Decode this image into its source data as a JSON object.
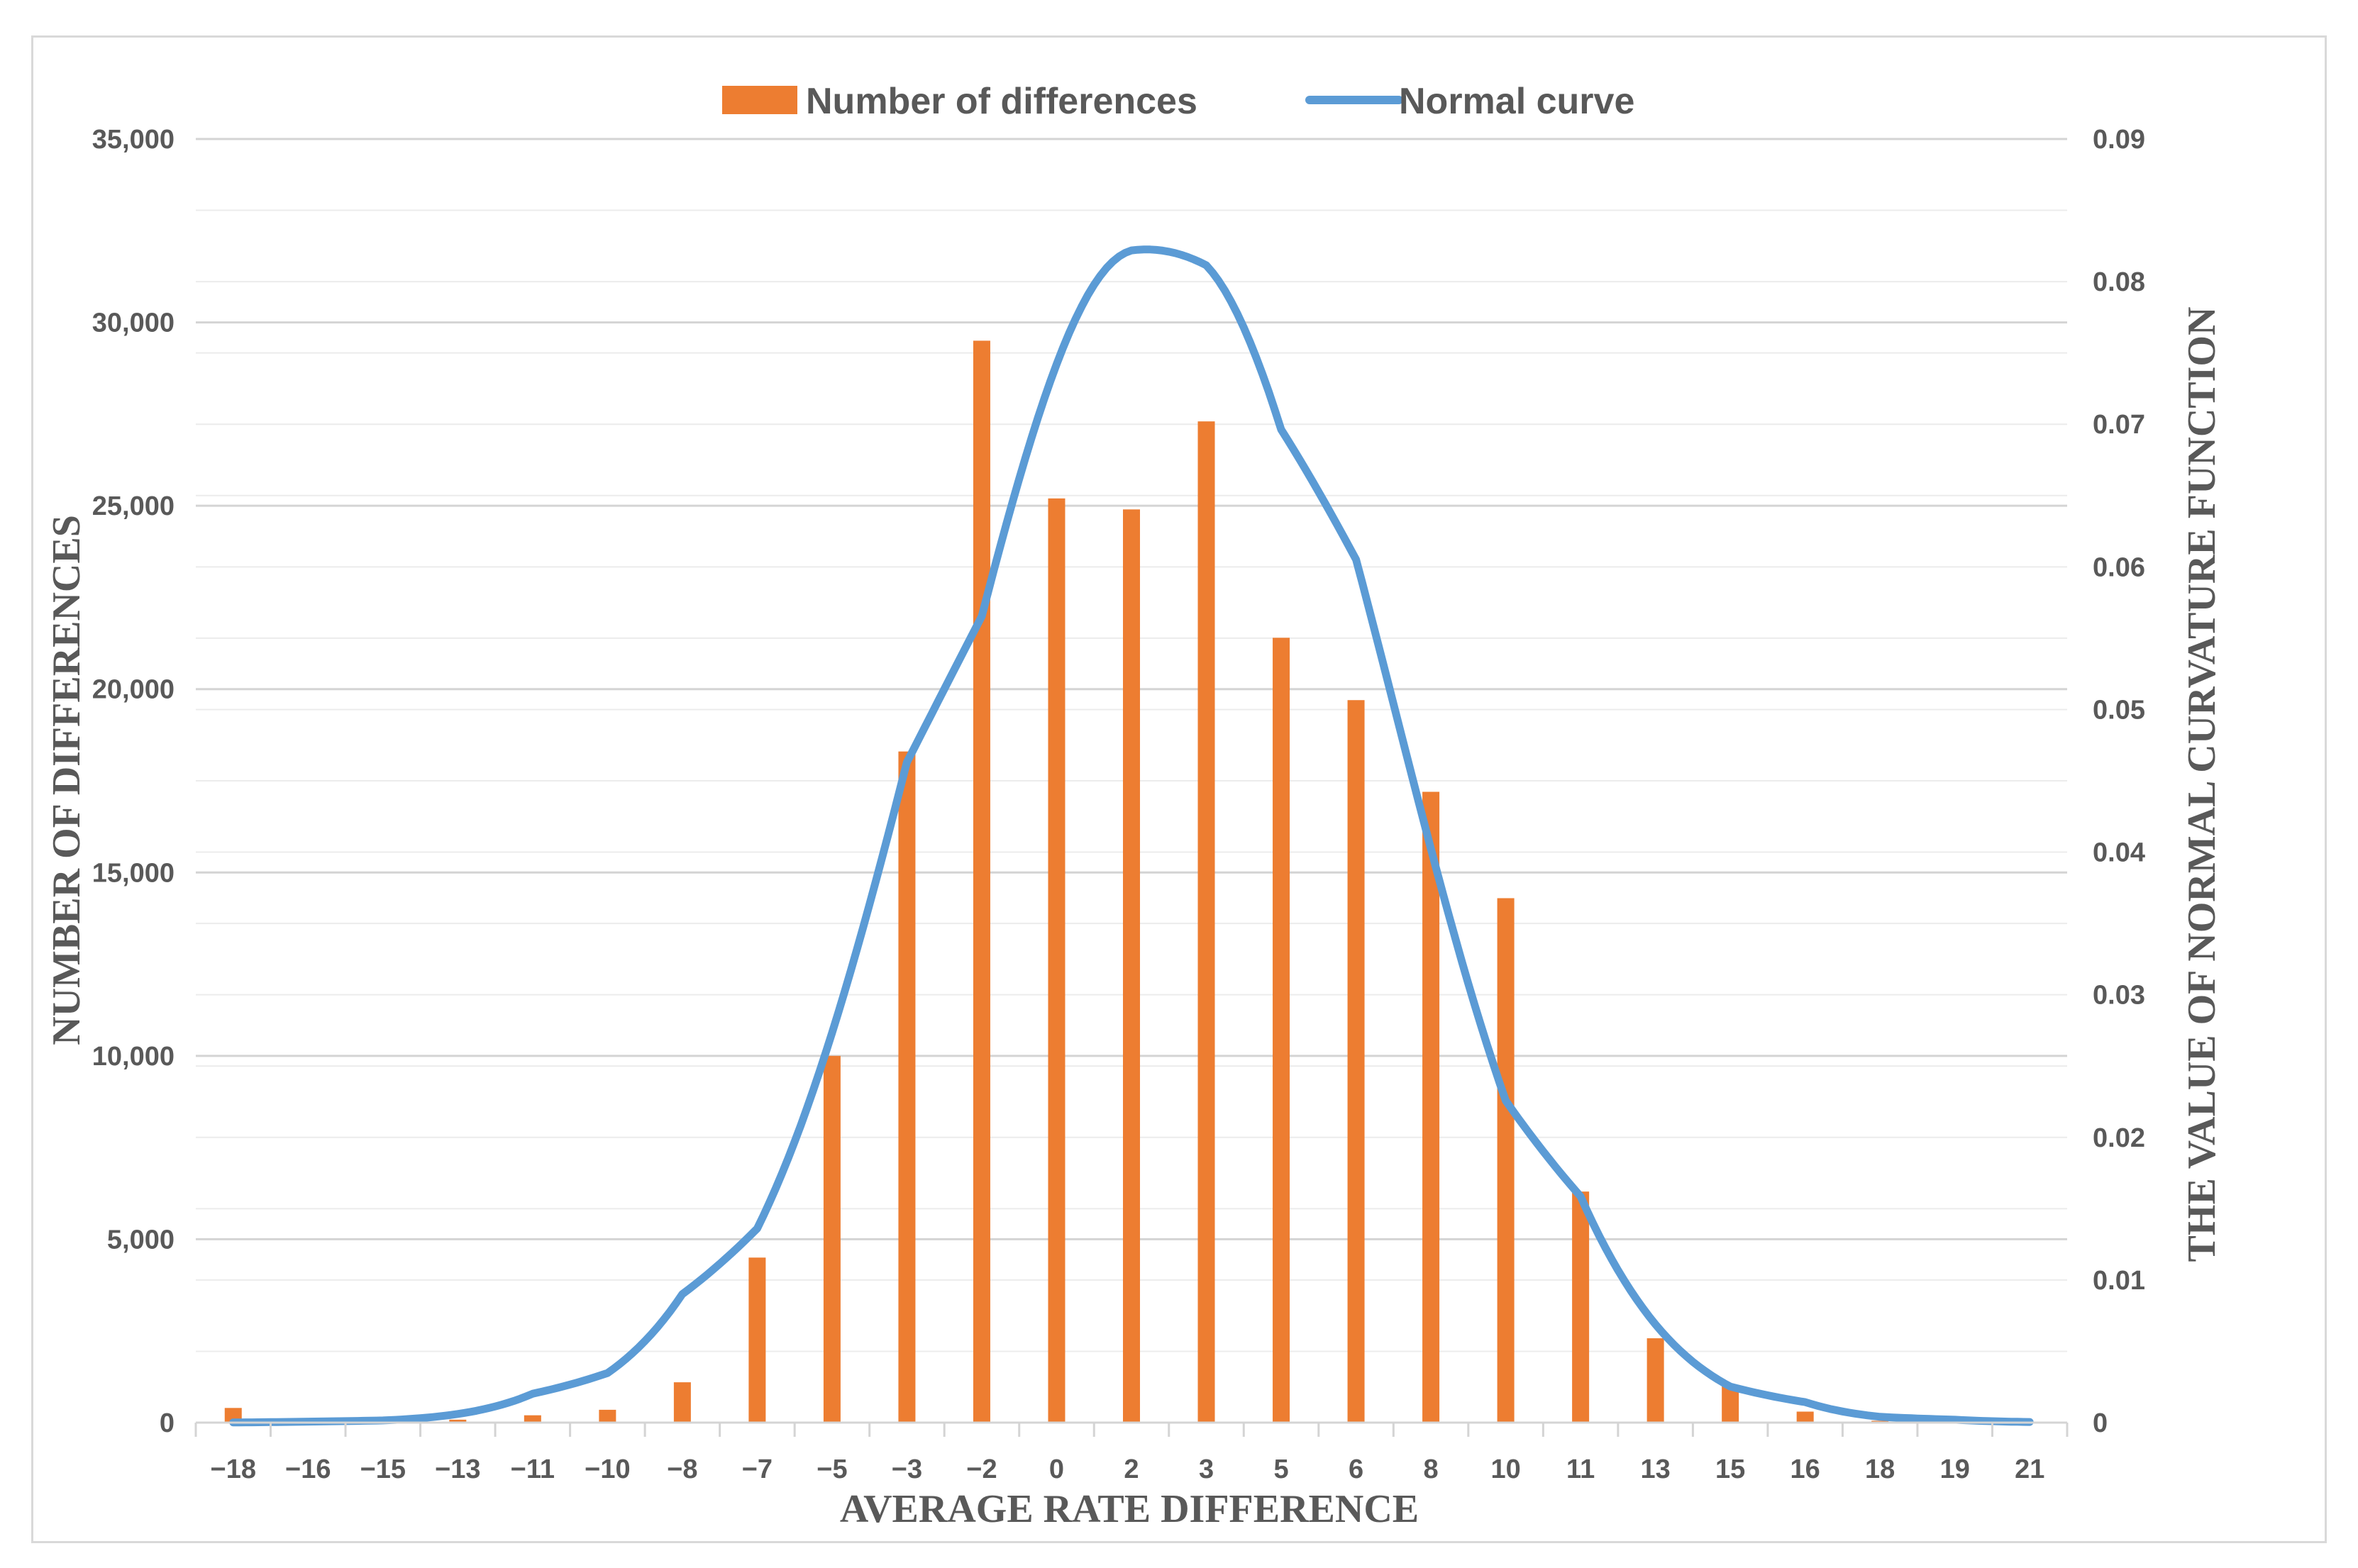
{
  "chart_data": {
    "type": "bar",
    "title": "",
    "xlabel": "AVERAGE RATE DIFFERENCE",
    "ylabel": "NUMBER OF DIFFERENCES",
    "y2label": "THE VALUE OF NORMAL CURVATURE  FUNCTION",
    "categories": [
      "−18",
      "−16",
      "−15",
      "−13",
      "−11",
      "−10",
      "−8",
      "−7",
      "−5",
      "−3",
      "−2",
      "0",
      "2",
      "3",
      "5",
      "6",
      "8",
      "10",
      "11",
      "13",
      "15",
      "16",
      "18",
      "19",
      "21"
    ],
    "x_numeric": [
      -18,
      -16,
      -15,
      -13,
      -11,
      -10,
      -8,
      -7,
      -5,
      -3,
      -2,
      0,
      2,
      3,
      5,
      6,
      8,
      10,
      11,
      13,
      15,
      16,
      18,
      19,
      21
    ],
    "series": [
      {
        "name": "Number of differences",
        "axis": "left",
        "color": "#ED7D31",
        "values": [
          400,
          50,
          30,
          80,
          200,
          350,
          1100,
          4500,
          10000,
          18300,
          29500,
          25200,
          24900,
          27300,
          21400,
          19700,
          17200,
          14300,
          6300,
          2300,
          1000,
          300,
          50,
          20,
          10
        ]
      },
      {
        "name": "Normal curve",
        "axis": "right",
        "type": "line",
        "color": "#5B9BD5",
        "distribution": {
          "mean": 2.2,
          "sd": 4.85
        }
      }
    ],
    "ylim": [
      0,
      35000
    ],
    "y_ticks": [
      "0",
      "5,000",
      "10,000",
      "15,000",
      "20,000",
      "25,000",
      "30,000",
      "35,000"
    ],
    "y2lim": [
      0,
      0.09
    ],
    "y2_ticks": [
      "0",
      "0.01",
      "0.02",
      "0.03",
      "0.04",
      "0.05",
      "0.06",
      "0.07",
      "0.08",
      "0.09"
    ],
    "legend": {
      "position": "top-center",
      "entries": [
        "Number of differences",
        "Normal curve"
      ]
    },
    "grid": true
  }
}
